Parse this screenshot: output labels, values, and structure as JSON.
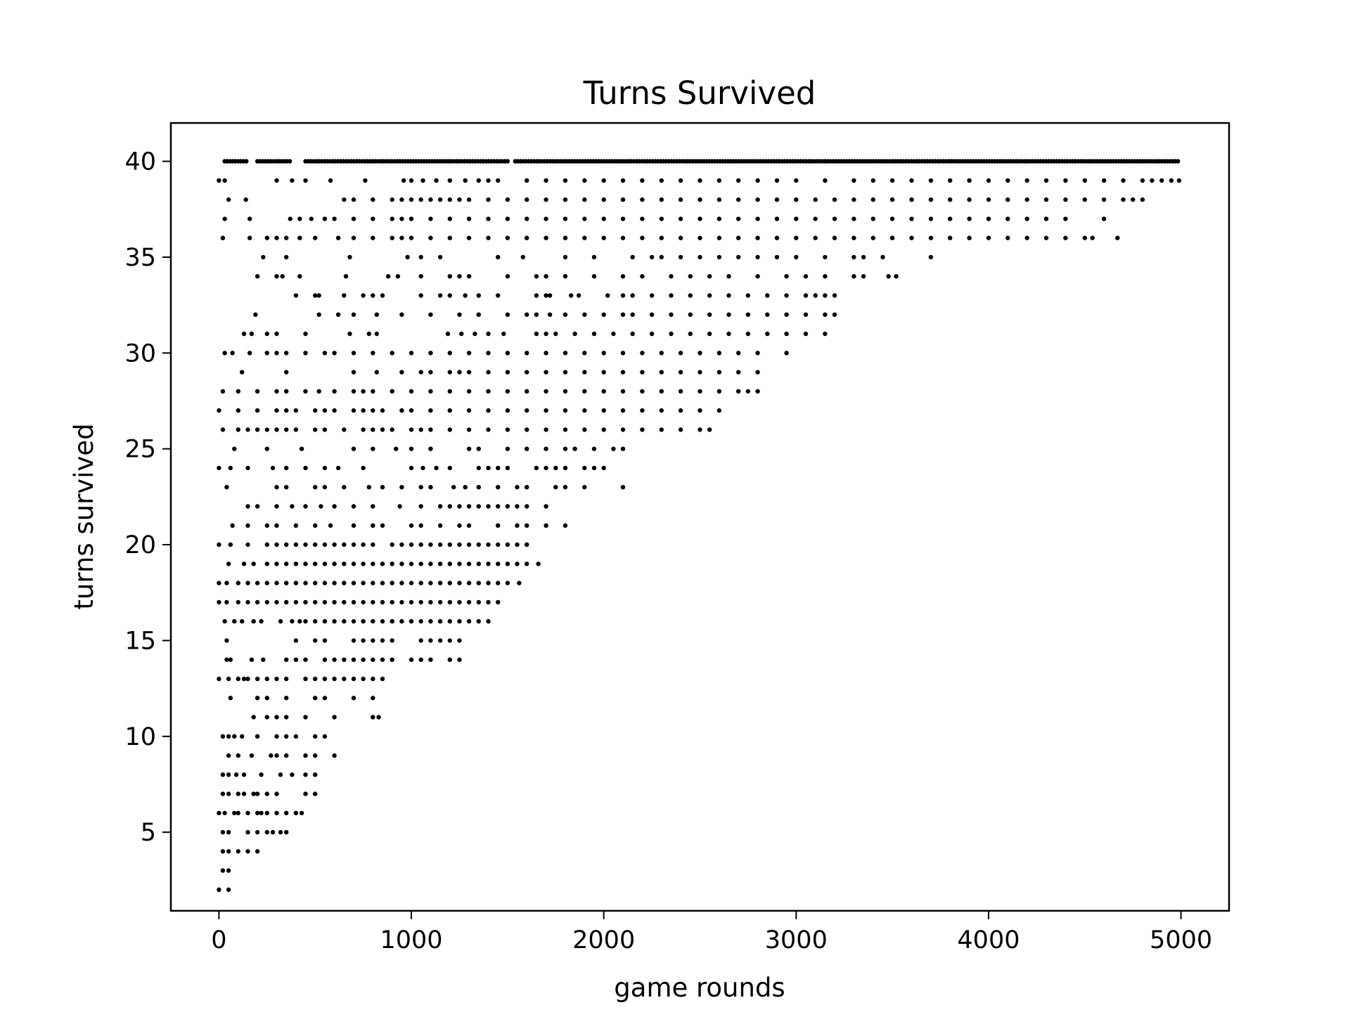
{
  "chart_data": {
    "type": "scatter",
    "title": "Turns Survived",
    "xlabel": "game rounds",
    "ylabel": "turns survived",
    "xlim": [
      -250,
      5250
    ],
    "ylim": [
      0.9,
      42
    ],
    "xticks": [
      0,
      1000,
      2000,
      3000,
      4000,
      5000
    ],
    "yticks": [
      5,
      10,
      15,
      20,
      25,
      30,
      35,
      40
    ],
    "grid": false,
    "legend": "none",
    "marker_color": "#000000",
    "rows": [
      {
        "y": 40,
        "ranges": [
          [
            30,
            150
          ],
          [
            200,
            380
          ],
          [
            450,
            1500
          ],
          [
            1540,
            4990
          ]
        ]
      },
      {
        "y": 39,
        "points": [
          0,
          30,
          300,
          380,
          450,
          580,
          760,
          960,
          1000,
          1060,
          1130,
          1200,
          1280,
          1350,
          1400,
          1450,
          1600,
          1700,
          1800,
          1900,
          2000,
          2100,
          2200,
          2300,
          2400,
          2500,
          2600,
          2700,
          2800,
          2900,
          3000,
          3150,
          3300,
          3400,
          3500,
          3600,
          3700,
          3800,
          3900,
          4000,
          4100,
          4200,
          4300,
          4400,
          4500,
          4600,
          4700,
          4800,
          4850,
          4900,
          4950,
          4990
        ]
      },
      {
        "y": 38,
        "points": [
          50,
          140,
          650,
          700,
          800,
          900,
          950,
          1000,
          1050,
          1100,
          1150,
          1200,
          1250,
          1300,
          1400,
          1500,
          1600,
          1700,
          1800,
          1900,
          2000,
          2100,
          2200,
          2300,
          2400,
          2500,
          2600,
          2700,
          2800,
          2900,
          3000,
          3100,
          3200,
          3300,
          3400,
          3500,
          3600,
          3700,
          3800,
          3900,
          4000,
          4100,
          4200,
          4300,
          4400,
          4500,
          4600,
          4700,
          4750,
          4800
        ]
      },
      {
        "y": 37,
        "points": [
          30,
          160,
          370,
          420,
          480,
          550,
          600,
          700,
          800,
          900,
          950,
          1000,
          1100,
          1200,
          1300,
          1400,
          1500,
          1600,
          1700,
          1800,
          1900,
          2000,
          2100,
          2200,
          2300,
          2400,
          2500,
          2600,
          2700,
          2800,
          2900,
          3000,
          3100,
          3200,
          3300,
          3400,
          3500,
          3600,
          3700,
          3800,
          3900,
          4000,
          4100,
          4200,
          4300,
          4400,
          4600
        ]
      },
      {
        "y": 36,
        "points": [
          20,
          160,
          250,
          300,
          350,
          420,
          500,
          620,
          700,
          800,
          900,
          950,
          1000,
          1100,
          1200,
          1300,
          1400,
          1500,
          1600,
          1700,
          1800,
          1900,
          2000,
          2100,
          2200,
          2300,
          2400,
          2500,
          2600,
          2700,
          2800,
          2900,
          3000,
          3100,
          3200,
          3300,
          3400,
          3500,
          3600,
          3700,
          3800,
          3900,
          4000,
          4100,
          4200,
          4300,
          4400,
          4500,
          4540,
          4670
        ]
      },
      {
        "y": 35,
        "points": [
          230,
          350,
          680,
          980,
          1050,
          1150,
          1450,
          1580,
          1800,
          1950,
          2150,
          2250,
          2300,
          2400,
          2500,
          2600,
          2700,
          2800,
          2900,
          3000,
          3150,
          3300,
          3350,
          3450,
          3700
        ]
      },
      {
        "y": 34,
        "points": [
          200,
          300,
          330,
          420,
          660,
          880,
          930,
          1050,
          1200,
          1250,
          1300,
          1500,
          1650,
          1700,
          1800,
          1950,
          2100,
          2200,
          2350,
          2450,
          2550,
          2650,
          2800,
          2950,
          3050,
          3150,
          3300,
          3350,
          3480,
          3520
        ]
      },
      {
        "y": 33,
        "points": [
          400,
          500,
          520,
          650,
          750,
          800,
          850,
          1050,
          1150,
          1200,
          1280,
          1350,
          1450,
          1650,
          1700,
          1720,
          1830,
          1870,
          2020,
          2100,
          2150,
          2250,
          2350,
          2450,
          2550,
          2650,
          2750,
          2850,
          2950,
          3050,
          3100,
          3150,
          3200
        ]
      },
      {
        "y": 32,
        "points": [
          190,
          520,
          620,
          700,
          820,
          950,
          1100,
          1250,
          1350,
          1500,
          1600,
          1650,
          1720,
          1800,
          1900,
          2000,
          2100,
          2150,
          2250,
          2350,
          2450,
          2550,
          2650,
          2750,
          2850,
          2950,
          3050,
          3150,
          3200
        ]
      },
      {
        "y": 31,
        "points": [
          130,
          170,
          250,
          300,
          450,
          680,
          780,
          820,
          1190,
          1260,
          1330,
          1400,
          1480,
          1650,
          1700,
          1750,
          1850,
          1950,
          2050,
          2150,
          2250,
          2350,
          2450,
          2550,
          2650,
          2750,
          2850,
          2950,
          3050,
          3150
        ]
      },
      {
        "y": 30,
        "points": [
          30,
          70,
          160,
          250,
          300,
          350,
          450,
          550,
          600,
          700,
          800,
          900,
          1000,
          1100,
          1200,
          1300,
          1400,
          1500,
          1600,
          1700,
          1800,
          1900,
          2000,
          2100,
          2200,
          2300,
          2400,
          2500,
          2600,
          2700,
          2800,
          2950
        ]
      },
      {
        "y": 29,
        "points": [
          120,
          350,
          700,
          820,
          950,
          1050,
          1100,
          1200,
          1250,
          1300,
          1400,
          1500,
          1600,
          1700,
          1800,
          1900,
          2000,
          2100,
          2200,
          2300,
          2400,
          2500,
          2600,
          2700,
          2800
        ]
      },
      {
        "y": 28,
        "points": [
          20,
          100,
          200,
          300,
          350,
          450,
          520,
          600,
          700,
          750,
          800,
          900,
          1000,
          1100,
          1200,
          1300,
          1400,
          1500,
          1600,
          1700,
          1800,
          1900,
          2000,
          2100,
          2200,
          2300,
          2400,
          2500,
          2600,
          2700,
          2750,
          2800
        ]
      },
      {
        "y": 27,
        "points": [
          0,
          100,
          200,
          300,
          350,
          400,
          500,
          550,
          600,
          700,
          750,
          800,
          850,
          950,
          1000,
          1100,
          1200,
          1300,
          1400,
          1500,
          1600,
          1700,
          1800,
          1900,
          2000,
          2100,
          2200,
          2300,
          2400,
          2500,
          2600
        ]
      },
      {
        "y": 26,
        "points": [
          20,
          100,
          150,
          200,
          250,
          300,
          350,
          400,
          500,
          550,
          650,
          750,
          800,
          850,
          900,
          1000,
          1050,
          1100,
          1200,
          1300,
          1400,
          1500,
          1600,
          1700,
          1800,
          1900,
          2000,
          2100,
          2200,
          2300,
          2400,
          2500,
          2550
        ]
      },
      {
        "y": 25,
        "points": [
          80,
          250,
          430,
          700,
          800,
          920,
          1000,
          1100,
          1300,
          1350,
          1500,
          1600,
          1700,
          1800,
          1850,
          1950,
          2050,
          2100
        ]
      },
      {
        "y": 24,
        "points": [
          0,
          60,
          150,
          280,
          350,
          450,
          550,
          620,
          750,
          1000,
          1060,
          1130,
          1200,
          1350,
          1400,
          1450,
          1500,
          1650,
          1700,
          1750,
          1800,
          1900,
          1950,
          2000
        ]
      },
      {
        "y": 23,
        "points": [
          40,
          300,
          350,
          500,
          550,
          650,
          780,
          850,
          950,
          1050,
          1100,
          1220,
          1280,
          1350,
          1450,
          1550,
          1600,
          1750,
          1800,
          1900,
          2100
        ]
      },
      {
        "y": 22,
        "points": [
          150,
          200,
          300,
          380,
          450,
          530,
          600,
          700,
          800,
          940,
          1050,
          1150,
          1200,
          1250,
          1300,
          1350,
          1400,
          1450,
          1500,
          1550,
          1600,
          1700
        ]
      },
      {
        "y": 21,
        "points": [
          70,
          150,
          250,
          300,
          400,
          500,
          580,
          700,
          800,
          850,
          1000,
          1050,
          1150,
          1250,
          1300,
          1450,
          1550,
          1600,
          1700,
          1800
        ]
      },
      {
        "y": 20,
        "points": [
          0,
          60,
          150,
          250,
          300,
          350,
          400,
          450,
          500,
          550,
          600,
          650,
          700,
          750,
          800,
          900,
          950,
          1000,
          1050,
          1100,
          1150,
          1200,
          1250,
          1300,
          1350,
          1400,
          1450,
          1500,
          1550,
          1600
        ]
      },
      {
        "y": 19,
        "points": [
          50,
          130,
          180,
          250,
          300,
          350,
          400,
          450,
          500,
          550,
          600,
          650,
          700,
          750,
          800,
          850,
          900,
          950,
          1000,
          1050,
          1100,
          1150,
          1200,
          1250,
          1300,
          1350,
          1400,
          1450,
          1500,
          1550,
          1600,
          1660
        ]
      },
      {
        "y": 18,
        "points": [
          0,
          40,
          100,
          150,
          200,
          250,
          300,
          350,
          400,
          450,
          500,
          550,
          600,
          650,
          700,
          750,
          800,
          850,
          900,
          950,
          1000,
          1050,
          1100,
          1150,
          1200,
          1250,
          1300,
          1350,
          1400,
          1450,
          1500,
          1560
        ]
      },
      {
        "y": 17,
        "points": [
          0,
          40,
          100,
          150,
          200,
          250,
          300,
          350,
          400,
          450,
          500,
          550,
          600,
          650,
          700,
          750,
          800,
          850,
          900,
          950,
          1000,
          1050,
          1100,
          1150,
          1200,
          1250,
          1300,
          1350,
          1400,
          1450
        ]
      },
      {
        "y": 16,
        "points": [
          30,
          80,
          120,
          180,
          220,
          320,
          380,
          420,
          450,
          500,
          550,
          600,
          650,
          700,
          750,
          800,
          850,
          900,
          950,
          1000,
          1050,
          1100,
          1150,
          1200,
          1250,
          1300,
          1350,
          1400
        ]
      },
      {
        "y": 15,
        "points": [
          40,
          400,
          500,
          550,
          700,
          750,
          800,
          850,
          900,
          1050,
          1100,
          1150,
          1200,
          1250
        ]
      },
      {
        "y": 14,
        "points": [
          40,
          60,
          170,
          230,
          350,
          400,
          450,
          550,
          600,
          650,
          700,
          750,
          800,
          850,
          900,
          1000,
          1050,
          1100,
          1200,
          1250
        ]
      },
      {
        "y": 13,
        "points": [
          0,
          50,
          100,
          130,
          150,
          200,
          250,
          300,
          350,
          450,
          500,
          550,
          600,
          650,
          700,
          750,
          800,
          850
        ]
      },
      {
        "y": 12,
        "points": [
          60,
          200,
          250,
          350,
          500,
          550,
          700,
          800
        ]
      },
      {
        "y": 11,
        "points": [
          180,
          250,
          300,
          350,
          450,
          600,
          800,
          830
        ]
      },
      {
        "y": 10,
        "points": [
          20,
          50,
          80,
          120,
          200,
          300,
          350,
          400,
          500,
          550
        ]
      },
      {
        "y": 9,
        "points": [
          50,
          100,
          170,
          270,
          300,
          350,
          450,
          500,
          600
        ]
      },
      {
        "y": 8,
        "points": [
          20,
          50,
          90,
          130,
          220,
          320,
          380,
          450,
          500
        ]
      },
      {
        "y": 7,
        "points": [
          20,
          50,
          100,
          130,
          180,
          200,
          250,
          300,
          450,
          500
        ]
      },
      {
        "y": 6,
        "points": [
          0,
          30,
          80,
          100,
          150,
          200,
          220,
          250,
          300,
          350,
          400,
          430
        ]
      },
      {
        "y": 5,
        "points": [
          20,
          50,
          150,
          200,
          250,
          280,
          320,
          350
        ]
      },
      {
        "y": 4,
        "points": [
          20,
          50,
          100,
          150,
          200
        ]
      },
      {
        "y": 3,
        "points": [
          20,
          50
        ]
      },
      {
        "y": 2,
        "points": [
          0,
          50
        ]
      }
    ]
  }
}
